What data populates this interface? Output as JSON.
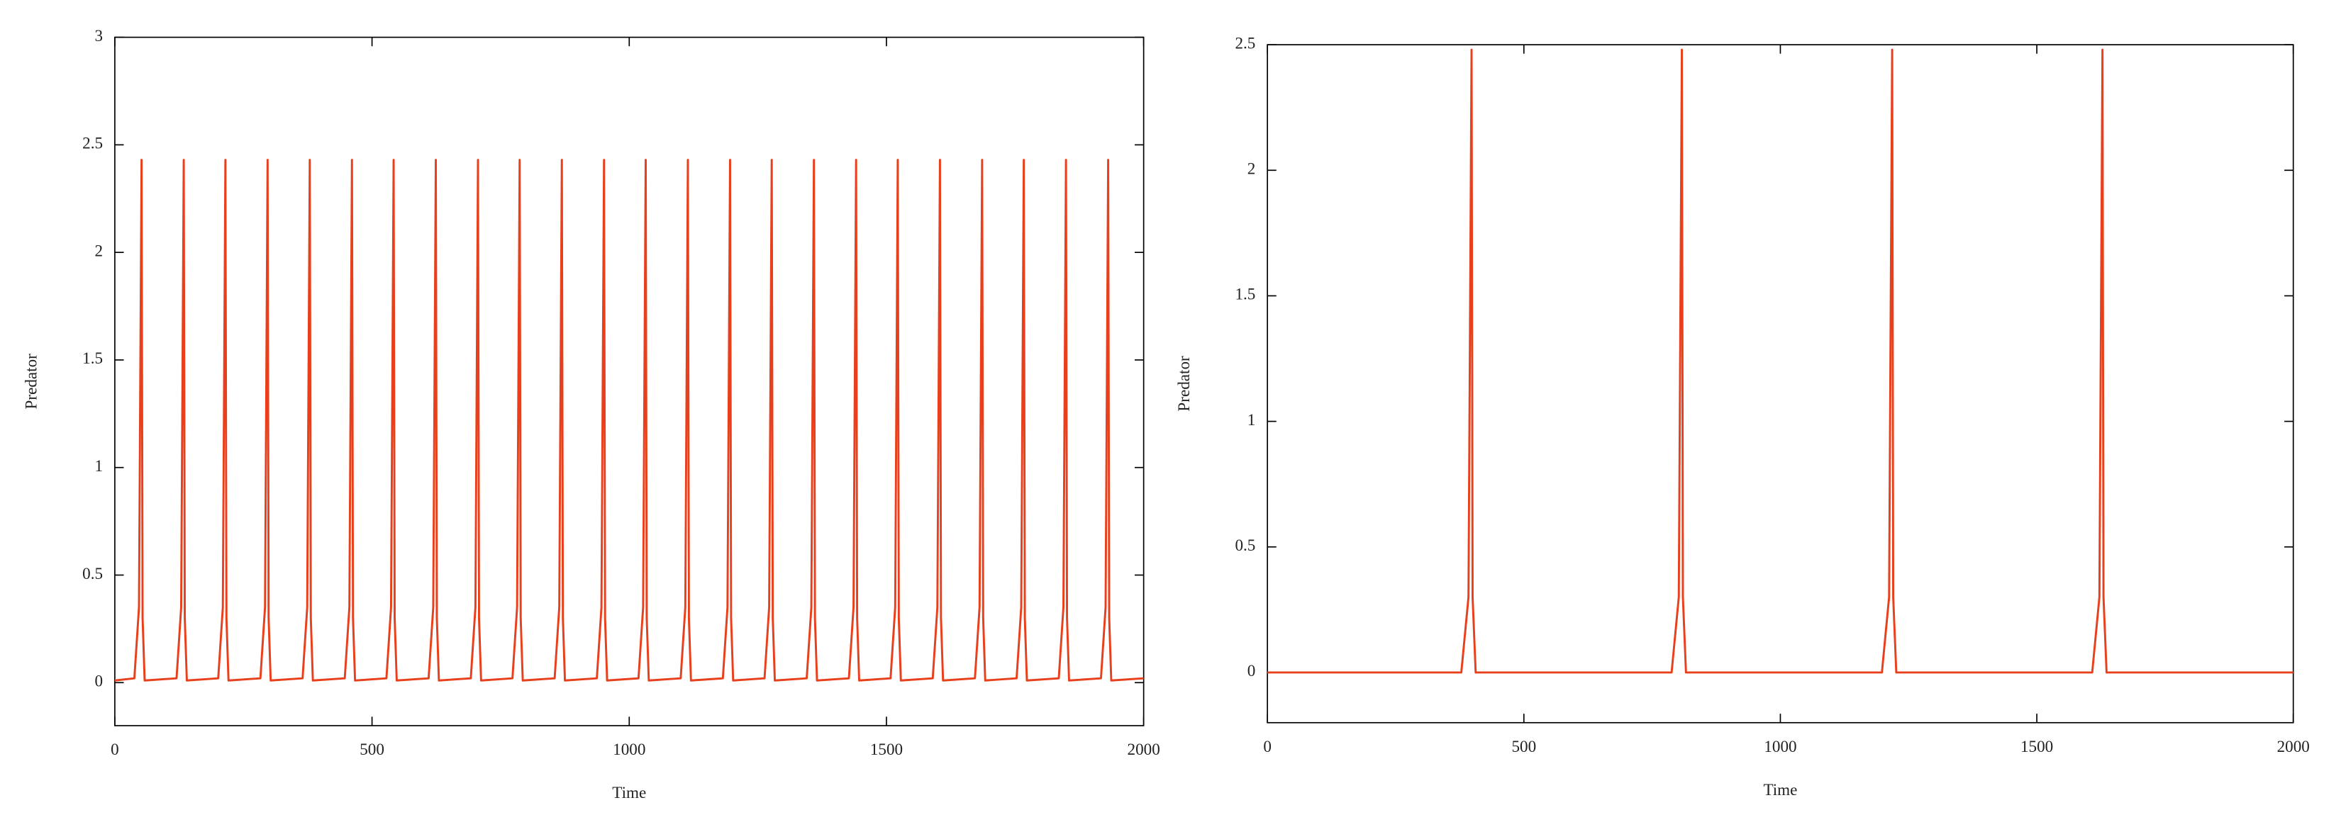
{
  "chart_data": [
    {
      "type": "line",
      "xlabel": "Time",
      "ylabel": "Predator",
      "xlim": [
        0,
        2000
      ],
      "xticks": [
        0,
        500,
        1000,
        1500,
        2000
      ],
      "ylim": [
        -0.2,
        3
      ],
      "yticks": [
        0,
        0.5,
        1,
        1.5,
        2,
        2.5,
        3
      ],
      "x": [
        0,
        38,
        47,
        52,
        54,
        58,
        120,
        129,
        134,
        136,
        140,
        201,
        210,
        215,
        217,
        221,
        283,
        292,
        297,
        299,
        303,
        365,
        374,
        379,
        381,
        385,
        447,
        456,
        461,
        463,
        467,
        528,
        537,
        542,
        544,
        548,
        610,
        619,
        624,
        626,
        630,
        692,
        701,
        706,
        708,
        712,
        773,
        782,
        787,
        789,
        793,
        855,
        864,
        869,
        871,
        875,
        937,
        946,
        951,
        953,
        957,
        1018,
        1027,
        1032,
        1034,
        1038,
        1100,
        1109,
        1114,
        1116,
        1120,
        1182,
        1191,
        1196,
        1198,
        1202,
        1263,
        1272,
        1277,
        1279,
        1283,
        1345,
        1354,
        1359,
        1361,
        1365,
        1427,
        1436,
        1441,
        1443,
        1447,
        1508,
        1517,
        1522,
        1524,
        1528,
        1590,
        1599,
        1604,
        1606,
        1610,
        1672,
        1681,
        1686,
        1688,
        1692,
        1753,
        1762,
        1767,
        1769,
        1773,
        1835,
        1844,
        1849,
        1851,
        1855,
        1917,
        1926,
        1931,
        1933,
        1937,
        2000
      ],
      "series": [
        {
          "color": "#e8401c",
          "values": [
            0.01,
            0.02,
            0.35,
            2.43,
            0.3,
            0.01,
            0.02,
            0.35,
            2.43,
            0.3,
            0.01,
            0.02,
            0.35,
            2.43,
            0.3,
            0.01,
            0.02,
            0.35,
            2.43,
            0.3,
            0.01,
            0.02,
            0.35,
            2.43,
            0.3,
            0.01,
            0.02,
            0.35,
            2.43,
            0.3,
            0.01,
            0.02,
            0.35,
            2.43,
            0.3,
            0.01,
            0.02,
            0.35,
            2.43,
            0.3,
            0.01,
            0.02,
            0.35,
            2.43,
            0.3,
            0.01,
            0.02,
            0.35,
            2.43,
            0.3,
            0.01,
            0.02,
            0.35,
            2.43,
            0.3,
            0.01,
            0.02,
            0.35,
            2.43,
            0.3,
            0.01,
            0.02,
            0.35,
            2.43,
            0.3,
            0.01,
            0.02,
            0.35,
            2.43,
            0.3,
            0.01,
            0.02,
            0.35,
            2.43,
            0.3,
            0.01,
            0.02,
            0.35,
            2.43,
            0.3,
            0.01,
            0.02,
            0.35,
            2.43,
            0.3,
            0.01,
            0.02,
            0.35,
            2.43,
            0.3,
            0.01,
            0.02,
            0.35,
            2.43,
            0.3,
            0.01,
            0.02,
            0.35,
            2.43,
            0.3,
            0.01,
            0.02,
            0.35,
            2.43,
            0.3,
            0.01,
            0.02,
            0.35,
            2.43,
            0.3,
            0.01,
            0.02,
            0.35,
            2.43,
            0.3,
            0.01,
            0.02,
            0.35,
            2.43,
            0.3,
            0.01,
            0.02
          ]
        }
      ]
    },
    {
      "type": "line",
      "xlabel": "Time",
      "ylabel": "Predator",
      "xlim": [
        0,
        2000
      ],
      "xticks": [
        0,
        500,
        1000,
        1500,
        2000
      ],
      "ylim": [
        -0.2,
        2.5
      ],
      "yticks": [
        0,
        0.5,
        1,
        1.5,
        2,
        2.5
      ],
      "x": [
        0,
        378,
        392,
        398,
        400,
        406,
        788,
        802,
        808,
        810,
        816,
        1198,
        1212,
        1218,
        1220,
        1226,
        1608,
        1622,
        1628,
        1630,
        1636,
        2000
      ],
      "series": [
        {
          "color": "#e8401c",
          "values": [
            0,
            0,
            0.3,
            2.48,
            0.3,
            0,
            0,
            0.3,
            2.48,
            0.3,
            0,
            0,
            0.3,
            2.48,
            0.3,
            0,
            0,
            0.3,
            2.48,
            0.3,
            0,
            0
          ]
        }
      ]
    }
  ]
}
